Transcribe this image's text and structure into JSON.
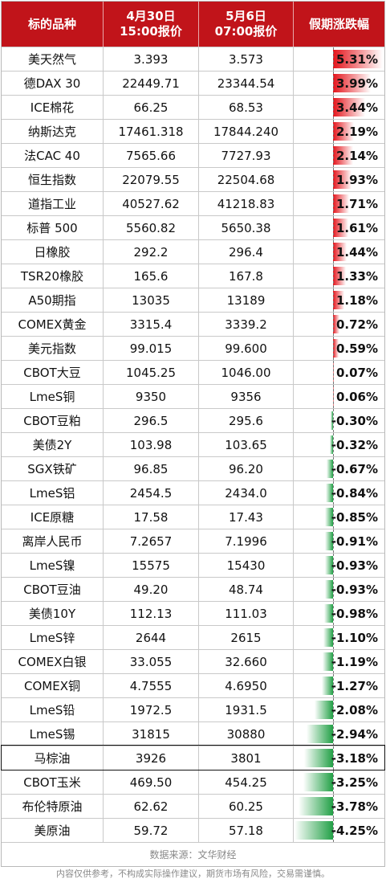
{
  "header": {
    "col1": "标的品种",
    "col2_line1": "4月30日",
    "col2_line2": "15:00报价",
    "col3_line1": "5月6日",
    "col3_line2": "07:00报价",
    "col4": "假期涨跌幅"
  },
  "rows": [
    {
      "name": "美天然气",
      "p1": "3.393",
      "p2": "3.573",
      "change": "5.31%",
      "value": 5.31
    },
    {
      "name": "德DAX 30",
      "p1": "22449.71",
      "p2": "23344.54",
      "change": "3.99%",
      "value": 3.99
    },
    {
      "name": "ICE棉花",
      "p1": "66.25",
      "p2": "68.53",
      "change": "3.44%",
      "value": 3.44
    },
    {
      "name": "纳斯达克",
      "p1": "17461.318",
      "p2": "17844.240",
      "change": "2.19%",
      "value": 2.19
    },
    {
      "name": "法CAC 40",
      "p1": "7565.66",
      "p2": "7727.93",
      "change": "2.14%",
      "value": 2.14
    },
    {
      "name": "恒生指数",
      "p1": "22079.55",
      "p2": "22504.68",
      "change": "1.93%",
      "value": 1.93
    },
    {
      "name": "道指工业",
      "p1": "40527.62",
      "p2": "41218.83",
      "change": "1.71%",
      "value": 1.71
    },
    {
      "name": "标普 500",
      "p1": "5560.82",
      "p2": "5650.38",
      "change": "1.61%",
      "value": 1.61
    },
    {
      "name": "日橡胶",
      "p1": "292.2",
      "p2": "296.4",
      "change": "1.44%",
      "value": 1.44
    },
    {
      "name": "TSR20橡胶",
      "p1": "165.6",
      "p2": "167.8",
      "change": "1.33%",
      "value": 1.33
    },
    {
      "name": "A50期指",
      "p1": "13035",
      "p2": "13189",
      "change": "1.18%",
      "value": 1.18
    },
    {
      "name": "COMEX黄金",
      "p1": "3315.4",
      "p2": "3339.2",
      "change": "0.72%",
      "value": 0.72
    },
    {
      "name": "美元指数",
      "p1": "99.015",
      "p2": "99.600",
      "change": "0.59%",
      "value": 0.59
    },
    {
      "name": "CBOT大豆",
      "p1": "1045.25",
      "p2": "1046.00",
      "change": "0.07%",
      "value": 0.07
    },
    {
      "name": "LmeS铜",
      "p1": "9350",
      "p2": "9356",
      "change": "0.06%",
      "value": 0.06
    },
    {
      "name": "CBOT豆粕",
      "p1": "296.5",
      "p2": "295.6",
      "change": "-0.30%",
      "value": -0.3
    },
    {
      "name": "美债2Y",
      "p1": "103.98",
      "p2": "103.65",
      "change": "-0.32%",
      "value": -0.32
    },
    {
      "name": "SGX铁矿",
      "p1": "96.85",
      "p2": "96.20",
      "change": "-0.67%",
      "value": -0.67
    },
    {
      "name": "LmeS铝",
      "p1": "2454.5",
      "p2": "2434.0",
      "change": "-0.84%",
      "value": -0.84
    },
    {
      "name": "ICE原糖",
      "p1": "17.58",
      "p2": "17.43",
      "change": "-0.85%",
      "value": -0.85
    },
    {
      "name": "离岸人民币",
      "p1": "7.2657",
      "p2": "7.1996",
      "change": "-0.91%",
      "value": -0.91
    },
    {
      "name": "LmeS镍",
      "p1": "15575",
      "p2": "15430",
      "change": "-0.93%",
      "value": -0.93
    },
    {
      "name": "CBOT豆油",
      "p1": "49.20",
      "p2": "48.74",
      "change": "-0.93%",
      "value": -0.93
    },
    {
      "name": "美债10Y",
      "p1": "112.13",
      "p2": "111.03",
      "change": "-0.98%",
      "value": -0.98
    },
    {
      "name": "LmeS锌",
      "p1": "2644",
      "p2": "2615",
      "change": "-1.10%",
      "value": -1.1
    },
    {
      "name": "COMEX白银",
      "p1": "33.055",
      "p2": "32.660",
      "change": "-1.19%",
      "value": -1.19
    },
    {
      "name": "COMEX铜",
      "p1": "4.7555",
      "p2": "4.6950",
      "change": "-1.27%",
      "value": -1.27
    },
    {
      "name": "LmeS铅",
      "p1": "1972.5",
      "p2": "1931.5",
      "change": "-2.08%",
      "value": -2.08
    },
    {
      "name": "LmeS锡",
      "p1": "31815",
      "p2": "30880",
      "change": "-2.94%",
      "value": -2.94
    },
    {
      "name": "马棕油",
      "p1": "3926",
      "p2": "3801",
      "change": "-3.18%",
      "value": -3.18,
      "highlight": true
    },
    {
      "name": "CBOT玉米",
      "p1": "469.50",
      "p2": "454.25",
      "change": "-3.25%",
      "value": -3.25
    },
    {
      "name": "布伦特原油",
      "p1": "62.62",
      "p2": "60.25",
      "change": "-3.78%",
      "value": -3.78
    },
    {
      "name": "美原油",
      "p1": "59.72",
      "p2": "57.18",
      "change": "-4.25%",
      "value": -4.25
    }
  ],
  "source": "数据来源：文华财经",
  "disclaimer": "内容仅供参考，不构成实际操作建议，期货市场有风险，交易需谨慎。",
  "colors": {
    "header_bg": "#c1141a",
    "up": "#e4141b",
    "down": "#22a046"
  }
}
